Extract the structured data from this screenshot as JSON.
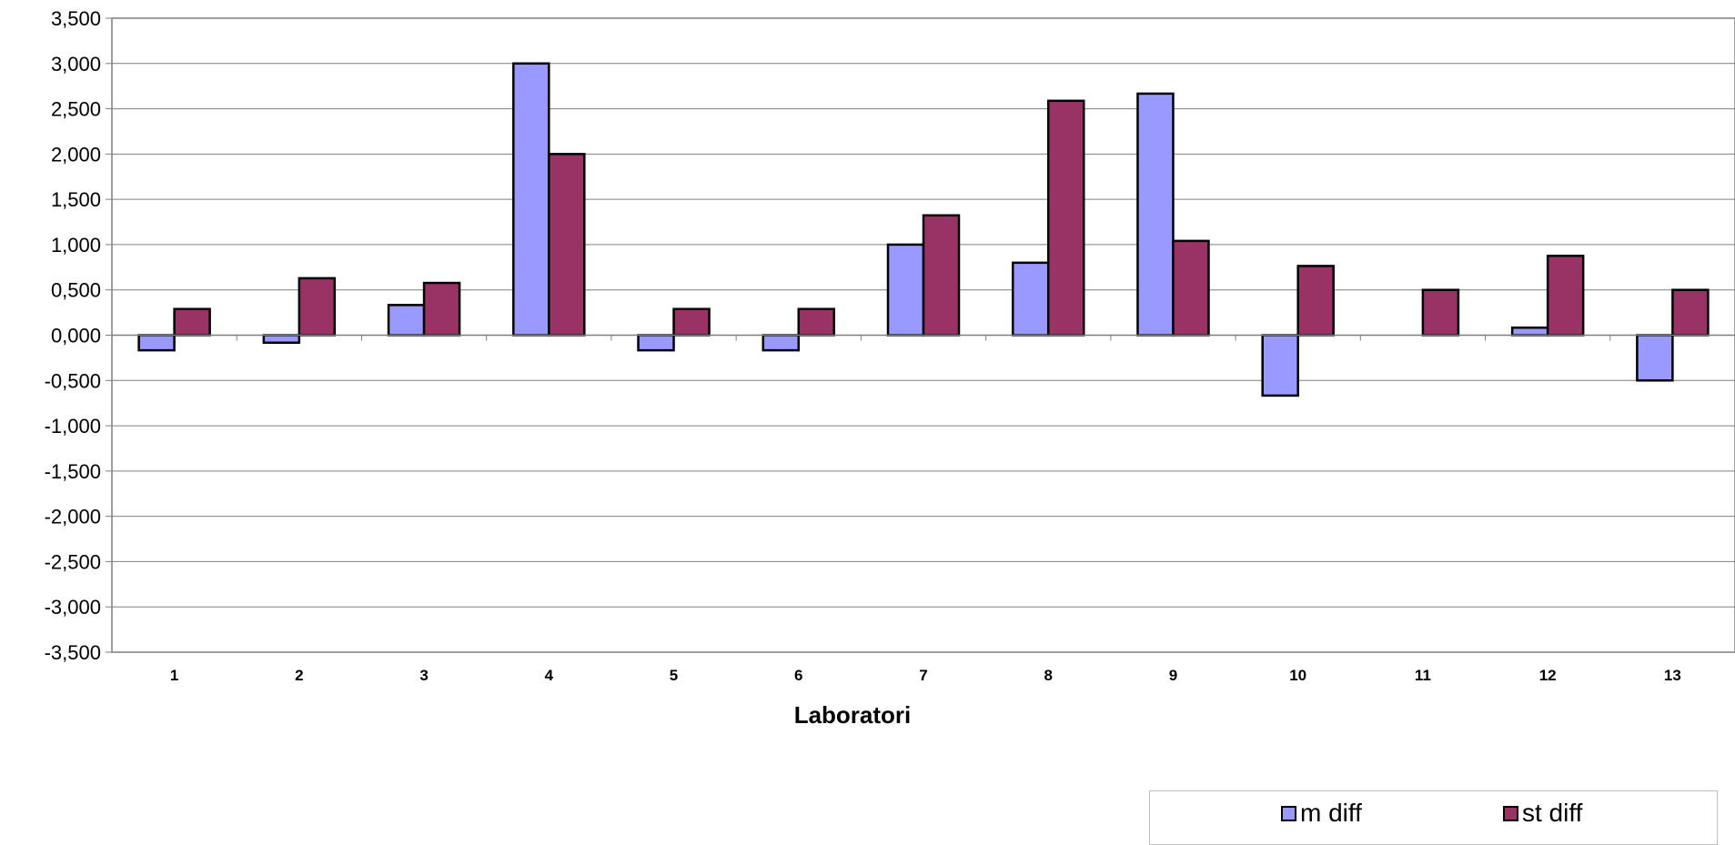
{
  "chart_data": {
    "type": "bar",
    "categories": [
      "1",
      "2",
      "3",
      "4",
      "5",
      "6",
      "7",
      "8",
      "9",
      "10",
      "11",
      "12",
      "13"
    ],
    "series": [
      {
        "name": "m diff",
        "color": "#9999ff",
        "values": [
          -0.167,
          -0.083,
          0.333,
          3.0,
          -0.167,
          -0.167,
          1.0,
          0.8,
          2.667,
          -0.667,
          0.0,
          0.083,
          -0.5
        ]
      },
      {
        "name": "st diff",
        "color": "#993366",
        "values": [
          0.289,
          0.629,
          0.577,
          2.0,
          0.289,
          0.289,
          1.323,
          2.588,
          1.041,
          0.764,
          0.5,
          0.876,
          0.5
        ]
      }
    ],
    "ylim": [
      -3.5,
      3.5
    ],
    "ytick_step": 0.5,
    "ytick_labels": [
      "3,500",
      "3,000",
      "2,500",
      "2,000",
      "1,500",
      "1,000",
      "0,500",
      "0,000",
      "-0,500",
      "-1,000",
      "-1,500",
      "-2,000",
      "-2,500",
      "-3,000",
      "-3,500"
    ],
    "xlabel": "Laboratori",
    "ylabel": "",
    "title": "",
    "grid": true,
    "legend_position": "bottom-right"
  }
}
